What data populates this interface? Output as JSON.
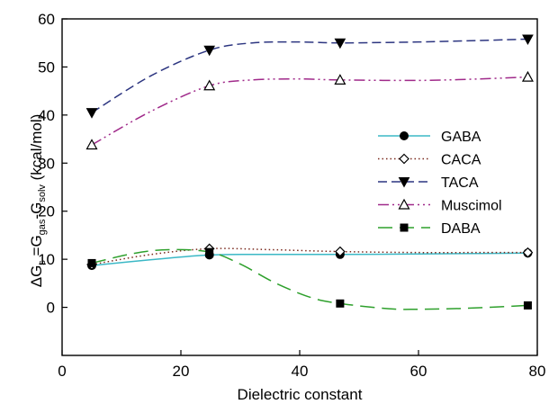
{
  "chart_data": {
    "type": "line",
    "xlabel": "Dielectric constant",
    "ylabel": {
      "parts": [
        {
          "text": "ΔG",
          "style": "normal"
        },
        {
          "text": "s",
          "style": "sub"
        },
        {
          "text": " =G",
          "style": "normal"
        },
        {
          "text": "gas",
          "style": "sub"
        },
        {
          "text": "-G",
          "style": "normal"
        },
        {
          "text": "solv",
          "style": "sub"
        },
        {
          "text": " (kcal/mol)",
          "style": "normal"
        }
      ]
    },
    "xlim": [
      0,
      80
    ],
    "ylim": [
      -10,
      60
    ],
    "xticks": [
      0,
      20,
      40,
      60,
      80
    ],
    "yticks": [
      0,
      10,
      20,
      30,
      40,
      50,
      60
    ],
    "legend_position": "right",
    "series": [
      {
        "name": "GABA",
        "color": "#3bb8c6",
        "dash": "solid",
        "marker": "circle-filled",
        "points": [
          [
            5,
            8.7
          ],
          [
            24.8,
            10.9
          ],
          [
            46.8,
            11.0
          ],
          [
            78.4,
            11.3
          ]
        ],
        "curve": [
          [
            5,
            8.7
          ],
          [
            15,
            9.9
          ],
          [
            24.8,
            10.9
          ],
          [
            35,
            11.0
          ],
          [
            46.8,
            11.0
          ],
          [
            60,
            11.1
          ],
          [
            70,
            11.2
          ],
          [
            78.4,
            11.3
          ]
        ]
      },
      {
        "name": "CACA",
        "color": "#7a2a1e",
        "dash": "dotted",
        "marker": "diamond-open",
        "points": [
          [
            5,
            8.9
          ],
          [
            24.8,
            12.2
          ],
          [
            46.8,
            11.6
          ],
          [
            78.4,
            11.4
          ]
        ],
        "curve": [
          [
            5,
            8.9
          ],
          [
            15,
            11.0
          ],
          [
            24.8,
            12.2
          ],
          [
            35,
            12.0
          ],
          [
            46.8,
            11.6
          ],
          [
            60,
            11.4
          ],
          [
            70,
            11.4
          ],
          [
            78.4,
            11.4
          ]
        ]
      },
      {
        "name": "TACA",
        "color": "#2c3580",
        "dash": "dashed",
        "marker": "triangle-down-filled",
        "points": [
          [
            5,
            40.5
          ],
          [
            24.8,
            53.5
          ],
          [
            46.8,
            55.0
          ],
          [
            78.4,
            55.8
          ]
        ],
        "curve": [
          [
            5,
            40.5
          ],
          [
            15,
            48.2
          ],
          [
            24.8,
            53.5
          ],
          [
            32,
            55.0
          ],
          [
            40,
            55.2
          ],
          [
            46.8,
            55.0
          ],
          [
            60,
            55.2
          ],
          [
            70,
            55.5
          ],
          [
            78.4,
            55.8
          ]
        ]
      },
      {
        "name": "Muscimol",
        "color": "#a02a8a",
        "dash": "dashdot",
        "marker": "triangle-up-open",
        "points": [
          [
            5,
            33.8
          ],
          [
            24.8,
            46.1
          ],
          [
            46.8,
            47.3
          ],
          [
            78.4,
            47.9
          ]
        ],
        "curve": [
          [
            5,
            33.8
          ],
          [
            15,
            40.8
          ],
          [
            24.8,
            46.1
          ],
          [
            32,
            47.3
          ],
          [
            40,
            47.5
          ],
          [
            46.8,
            47.3
          ],
          [
            60,
            47.2
          ],
          [
            70,
            47.5
          ],
          [
            78.4,
            47.9
          ]
        ]
      },
      {
        "name": "DABA",
        "color": "#2ea02c",
        "dash": "longdash",
        "marker": "square-filled",
        "points": [
          [
            5,
            9.2
          ],
          [
            24.8,
            11.5
          ],
          [
            46.8,
            0.8
          ],
          [
            78.4,
            0.4
          ]
        ],
        "curve": [
          [
            5,
            9.2
          ],
          [
            12,
            11.2
          ],
          [
            18,
            12.0
          ],
          [
            24.8,
            11.5
          ],
          [
            30,
            9.0
          ],
          [
            36,
            5.0
          ],
          [
            42,
            2.0
          ],
          [
            46.8,
            0.8
          ],
          [
            55,
            -0.3
          ],
          [
            60,
            -0.4
          ],
          [
            68,
            -0.2
          ],
          [
            78.4,
            0.4
          ]
        ]
      }
    ]
  }
}
